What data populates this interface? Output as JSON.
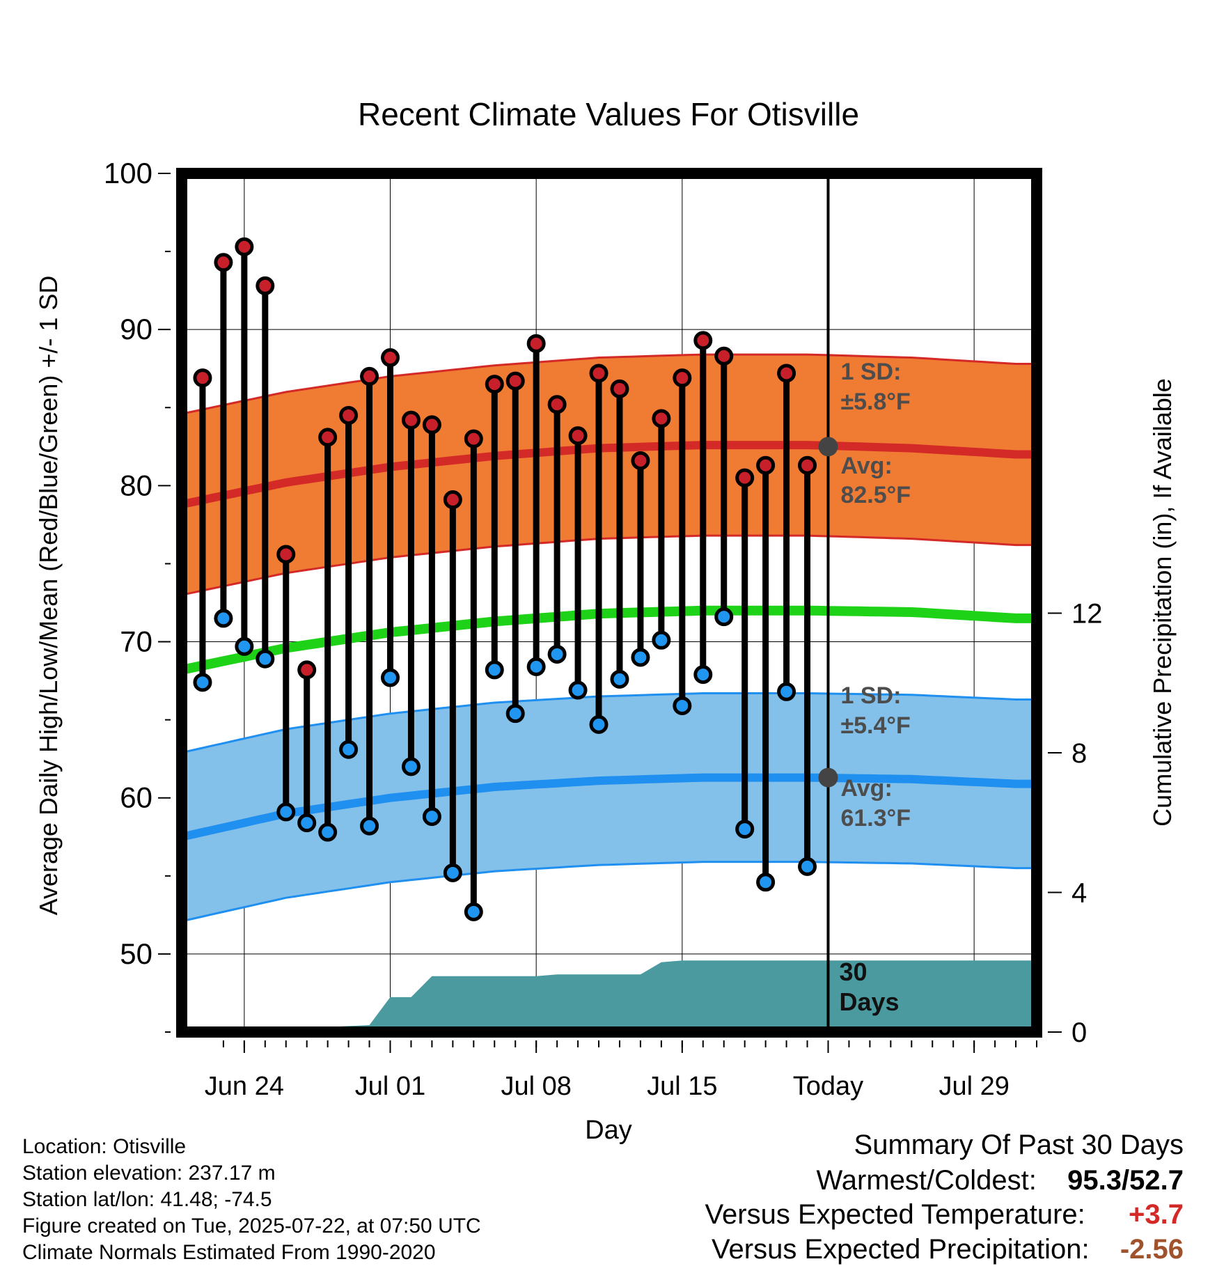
{
  "chart_data": {
    "type": "line",
    "title": "Recent Climate Values For Otisville",
    "xlabel": "Day",
    "ylabel": "Average Daily High/Low/Mean (Red/Blue/Green) +/- 1 SD",
    "y2label": "Cumulative Precipitation (in), If Available",
    "x_ticks": [
      {
        "day": 3,
        "label": "Jun 24"
      },
      {
        "day": 10,
        "label": "Jul 01"
      },
      {
        "day": 17,
        "label": "Jul 08"
      },
      {
        "day": 24,
        "label": "Jul 15"
      },
      {
        "day": 31,
        "label": "Today"
      },
      {
        "day": 38,
        "label": "Jul 29"
      }
    ],
    "xlim": [
      0,
      41
    ],
    "ylim": [
      45,
      100
    ],
    "y_ticks": [
      50,
      60,
      70,
      80,
      90,
      100
    ],
    "y2lim": [
      0,
      24.6
    ],
    "y2_ticks": [
      0,
      4,
      8,
      12
    ],
    "today_day": 31,
    "grid": true,
    "days": [
      1,
      2,
      3,
      4,
      5,
      6,
      7,
      8,
      9,
      10,
      11,
      12,
      13,
      14,
      15,
      16,
      17,
      18,
      19,
      20,
      21,
      22,
      23,
      24,
      25,
      26,
      27,
      28,
      29,
      30
    ],
    "daily_high": [
      86.9,
      94.3,
      95.3,
      92.8,
      75.6,
      68.2,
      83.1,
      84.5,
      87.0,
      88.2,
      84.2,
      83.9,
      79.1,
      83.0,
      86.5,
      86.7,
      89.1,
      85.2,
      83.2,
      87.2,
      86.2,
      81.6,
      84.3,
      86.9,
      89.3,
      88.3,
      80.5,
      81.3,
      87.2,
      81.3
    ],
    "daily_low": [
      67.4,
      71.5,
      69.7,
      68.9,
      59.1,
      58.4,
      57.8,
      63.1,
      58.2,
      67.7,
      62.0,
      58.8,
      55.2,
      52.7,
      68.2,
      65.4,
      68.4,
      69.2,
      66.9,
      64.7,
      67.6,
      69.0,
      70.1,
      65.9,
      67.9,
      71.6,
      58.0,
      54.6,
      66.8,
      55.6
    ],
    "normals": {
      "days": [
        0,
        5,
        10,
        15,
        20,
        25,
        30,
        35,
        40
      ],
      "high_avg": [
        78.8,
        80.2,
        81.2,
        81.9,
        82.4,
        82.6,
        82.6,
        82.4,
        82.0
      ],
      "high_sd": 5.8,
      "low_avg": [
        57.5,
        59.0,
        60.0,
        60.7,
        61.1,
        61.3,
        61.3,
        61.2,
        60.9
      ],
      "low_sd": 5.4,
      "mean_avg": [
        68.2,
        69.6,
        70.6,
        71.3,
        71.8,
        72.0,
        72.0,
        71.9,
        71.5
      ]
    },
    "precip_cumulative": [
      [
        0,
        0
      ],
      [
        5,
        0
      ],
      [
        5.5,
        0.1
      ],
      [
        9,
        0.2
      ],
      [
        10,
        1.0
      ],
      [
        11,
        1.0
      ],
      [
        12,
        1.6
      ],
      [
        17,
        1.6
      ],
      [
        18,
        1.65
      ],
      [
        22,
        1.65
      ],
      [
        23,
        2.0
      ],
      [
        24,
        2.05
      ],
      [
        41,
        2.05
      ]
    ],
    "annotations": {
      "high_sd_label": "1 SD:",
      "high_sd_value": "±5.8°F",
      "high_avg_label": "Avg:",
      "high_avg_value": "82.5°F",
      "low_sd_label": "1 SD:",
      "low_sd_value": "±5.4°F",
      "low_avg_label": "Avg:",
      "low_avg_value": "61.3°F",
      "days_label_1": "30",
      "days_label_2": "Days",
      "today_high_avg": 82.5,
      "today_low_avg": 61.3
    },
    "colors": {
      "high_band": "#f07b33",
      "high_line": "#d42a27",
      "low_band": "#84c1ea",
      "low_line": "#1f8ff0",
      "mean_line": "#1ed317",
      "precip": "#4a9aa0",
      "high_dot": "#c8202a",
      "low_dot": "#2196f0",
      "avg_dot": "#444444",
      "annotation_text": "#4d4d4d"
    }
  },
  "info": {
    "location": "Location: Otisville",
    "elevation": "Station elevation: 237.17 m",
    "latlon": "Station lat/lon: 41.48; -74.5",
    "created": "Figure created on Tue, 2025-07-22, at 07:50 UTC",
    "normals": "Climate Normals Estimated From 1990-2020"
  },
  "summary": {
    "title": "Summary Of Past 30 Days",
    "warm_cold_label": "Warmest/Coldest:",
    "warm_value": "95.3",
    "slash": "/",
    "cold_value": "52.7",
    "temp_label": "Versus Expected Temperature:",
    "temp_value": "+3.7",
    "temp_color": "#d42a27",
    "precip_label": "Versus Expected Precipitation:",
    "precip_value": "-2.56",
    "precip_color": "#a0522d"
  }
}
